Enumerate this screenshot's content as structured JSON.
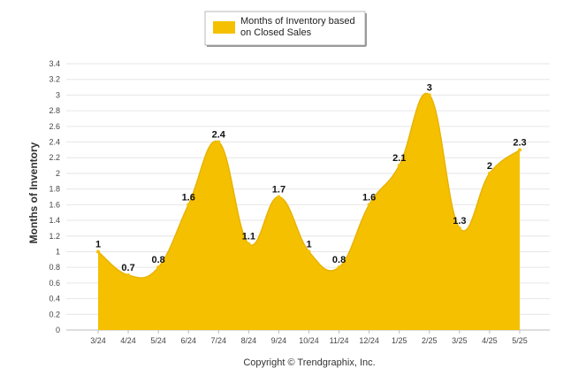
{
  "chart_data": {
    "type": "area",
    "categories": [
      "3/24",
      "4/24",
      "5/24",
      "6/24",
      "7/24",
      "8/24",
      "9/24",
      "10/24",
      "11/24",
      "12/24",
      "1/25",
      "2/25",
      "3/25",
      "4/25",
      "5/25"
    ],
    "series": [
      {
        "name": "Months of Inventory based on Closed Sales",
        "values": [
          1,
          0.7,
          0.8,
          1.6,
          2.4,
          1.1,
          1.7,
          1,
          0.8,
          1.6,
          2.1,
          3,
          1.3,
          2,
          2.3
        ],
        "color": "#F5C000"
      }
    ],
    "data_labels": [
      "1",
      "0.7",
      "0.8",
      "1.6",
      "2.4",
      "1.1",
      "1.7",
      "1",
      "0.8",
      "1.6",
      "2.1",
      "3",
      "1.3",
      "2",
      "2.3"
    ],
    "ylabel": "Months of Inventory",
    "xlabel": "",
    "ylim": [
      0,
      3.4
    ],
    "yticks": [
      "0",
      "0.2",
      "0.4",
      "0.6",
      "0.8",
      "1",
      "1.2",
      "1.4",
      "1.6",
      "1.8",
      "2",
      "2.2",
      "2.4",
      "2.6",
      "2.8",
      "3",
      "3.2",
      "3.4"
    ],
    "grid": true,
    "legend_position": "top-center"
  },
  "legend": {
    "line1": "Months of Inventory based",
    "line2": "on Closed Sales"
  },
  "footer": {
    "copyright": "Copyright © Trendgraphix, Inc."
  }
}
